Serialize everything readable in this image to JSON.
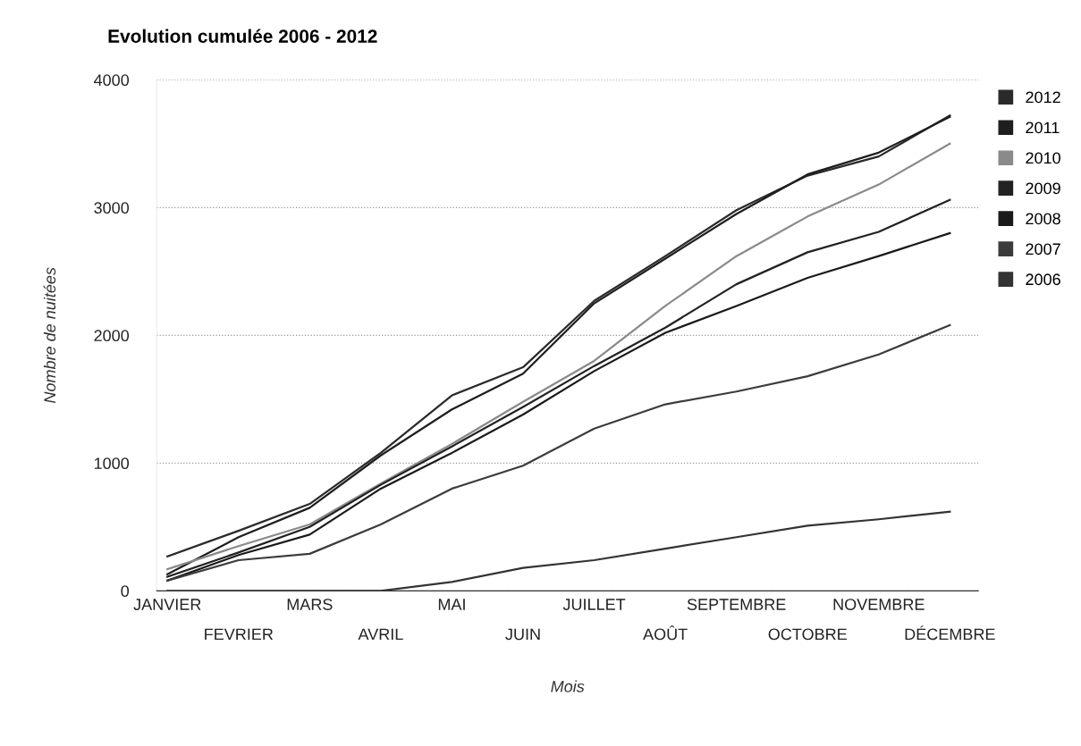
{
  "chart_data": {
    "type": "line",
    "title": "Evolution cumulée 2006 - 2012",
    "xlabel": "Mois",
    "ylabel": "Nombre de nuitées",
    "categories": [
      "JANVIER",
      "FEVRIER",
      "MARS",
      "AVRIL",
      "MAI",
      "JUIN",
      "JUILLET",
      "AOÛT",
      "SEPTEMBRE",
      "OCTOBRE",
      "NOVEMBRE",
      "DÉCEMBRE"
    ],
    "ylim": [
      0,
      4000
    ],
    "yticks": [
      0,
      1000,
      2000,
      3000,
      4000
    ],
    "grid": "y",
    "legend": "right",
    "marker": "none",
    "line_style": "solid",
    "series": [
      {
        "name": "2012",
        "color": "#2a2a2a",
        "values": [
          270,
          470,
          680,
          1080,
          1530,
          1750,
          2270,
          2620,
          2980,
          3250,
          3400,
          3720
        ]
      },
      {
        "name": "2011",
        "color": "#1e1e1e",
        "values": [
          130,
          420,
          650,
          1060,
          1420,
          1700,
          2250,
          2600,
          2950,
          3260,
          3430,
          3710
        ]
      },
      {
        "name": "2010",
        "color": "#8a8a8a",
        "values": [
          170,
          350,
          520,
          840,
          1150,
          1480,
          1800,
          2230,
          2620,
          2930,
          3180,
          3500
        ]
      },
      {
        "name": "2009",
        "color": "#222222",
        "values": [
          110,
          300,
          500,
          830,
          1130,
          1440,
          1760,
          2060,
          2400,
          2650,
          2810,
          3060
        ]
      },
      {
        "name": "2008",
        "color": "#1a1a1a",
        "values": [
          80,
          280,
          440,
          800,
          1080,
          1380,
          1720,
          2020,
          2230,
          2450,
          2620,
          2800
        ]
      },
      {
        "name": "2007",
        "color": "#3c3c3c",
        "values": [
          80,
          240,
          290,
          520,
          800,
          980,
          1270,
          1460,
          1560,
          1680,
          1850,
          2080
        ]
      },
      {
        "name": "2006",
        "color": "#333333",
        "values": [
          0,
          0,
          0,
          0,
          70,
          180,
          240,
          330,
          420,
          510,
          560,
          620
        ]
      }
    ]
  }
}
